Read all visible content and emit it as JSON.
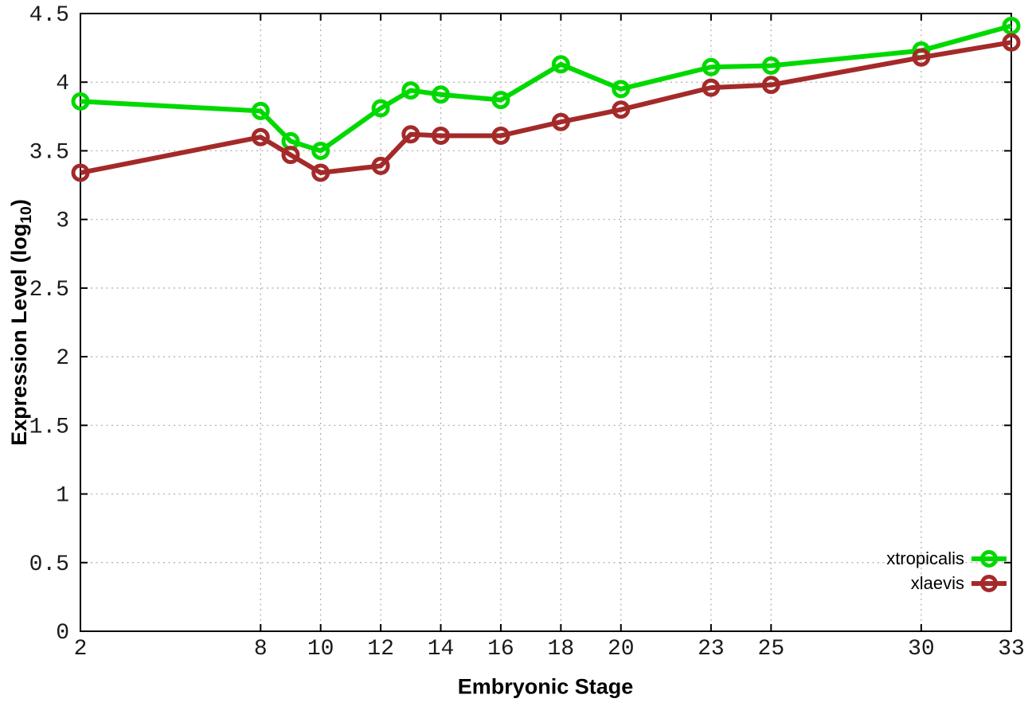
{
  "chart_data": {
    "type": "line",
    "title": "",
    "xlabel": "Embryonic Stage",
    "ylabel": "Expression Level (log10)",
    "ylabel_parts": {
      "pre": "Expression Level (log",
      "sub": "10",
      "post": ")"
    },
    "x": [
      2,
      8,
      9,
      10,
      12,
      13,
      14,
      16,
      18,
      20,
      23,
      25,
      30,
      33
    ],
    "series": [
      {
        "name": "xtropicalis",
        "color": "#00d900",
        "values": [
          3.86,
          3.79,
          3.57,
          3.5,
          3.81,
          3.94,
          3.91,
          3.87,
          4.13,
          3.95,
          4.11,
          4.12,
          4.23,
          4.41
        ]
      },
      {
        "name": "xlaevis",
        "color": "#a42a2a",
        "values": [
          3.34,
          3.6,
          3.47,
          3.34,
          3.39,
          3.62,
          3.61,
          3.61,
          3.71,
          3.8,
          3.96,
          3.98,
          4.18,
          4.29
        ]
      }
    ],
    "xlim": [
      2,
      33
    ],
    "ylim": [
      0,
      4.5
    ],
    "xticks": [
      2,
      8,
      10,
      12,
      14,
      16,
      18,
      20,
      23,
      25,
      30,
      33
    ],
    "xtick_labels": [
      "2",
      "8",
      "10",
      "12",
      "14",
      "16",
      "18",
      "20",
      "23",
      "25",
      "30",
      "33"
    ],
    "yticks": [
      0,
      0.5,
      1,
      1.5,
      2,
      2.5,
      3,
      3.5,
      4,
      4.5
    ],
    "ytick_labels": [
      "0",
      "0.5",
      "1",
      "1.5",
      "2",
      "2.5",
      "3",
      "3.5",
      "4",
      "4.5"
    ],
    "grid": true,
    "legend_position": "inside-bottom-right",
    "marker": "open-circle",
    "colors": {
      "axis": "#000000",
      "grid": "#aaaaaa",
      "background": "#ffffff",
      "tick_text": "#1a1a1a"
    }
  }
}
